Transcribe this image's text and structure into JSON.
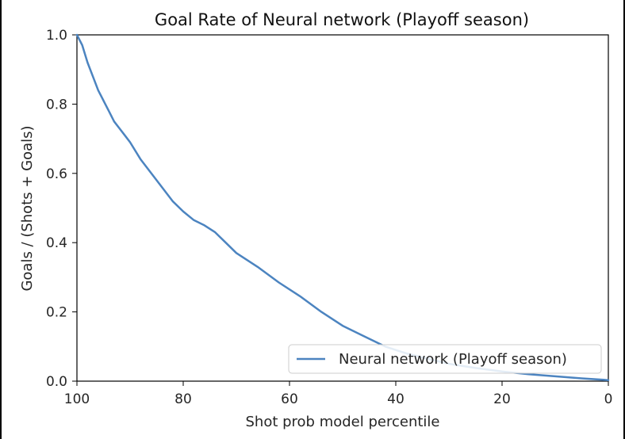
{
  "chart_data": {
    "type": "line",
    "title": "Goal Rate of Neural network (Playoff season)",
    "xlabel": "Shot prob model percentile",
    "ylabel": "Goals / (Shots + Goals)",
    "xlim": [
      100,
      0
    ],
    "ylim": [
      0.0,
      1.0
    ],
    "x_ticks": [
      "100",
      "80",
      "60",
      "40",
      "20",
      "0"
    ],
    "y_ticks": [
      "0.0",
      "0.2",
      "0.4",
      "0.6",
      "0.8",
      "1.0"
    ],
    "grid": false,
    "legend_position": "lower right",
    "series": [
      {
        "name": "Neural network (Playoff season)",
        "color": "#4c84c0",
        "x": [
          100,
          99,
          98,
          97,
          96,
          95,
          94,
          93,
          92,
          91,
          90,
          88,
          86,
          84,
          82,
          80,
          78,
          76,
          74,
          72,
          70,
          66,
          62,
          58,
          54,
          50,
          46,
          42,
          38,
          34,
          30,
          25,
          20,
          15,
          10,
          5,
          0
        ],
        "y": [
          1.0,
          0.97,
          0.92,
          0.88,
          0.84,
          0.81,
          0.78,
          0.75,
          0.73,
          0.71,
          0.69,
          0.64,
          0.6,
          0.56,
          0.52,
          0.49,
          0.465,
          0.45,
          0.43,
          0.4,
          0.37,
          0.33,
          0.285,
          0.245,
          0.2,
          0.16,
          0.13,
          0.1,
          0.08,
          0.065,
          0.05,
          0.038,
          0.028,
          0.02,
          0.014,
          0.008,
          0.003
        ]
      }
    ]
  }
}
